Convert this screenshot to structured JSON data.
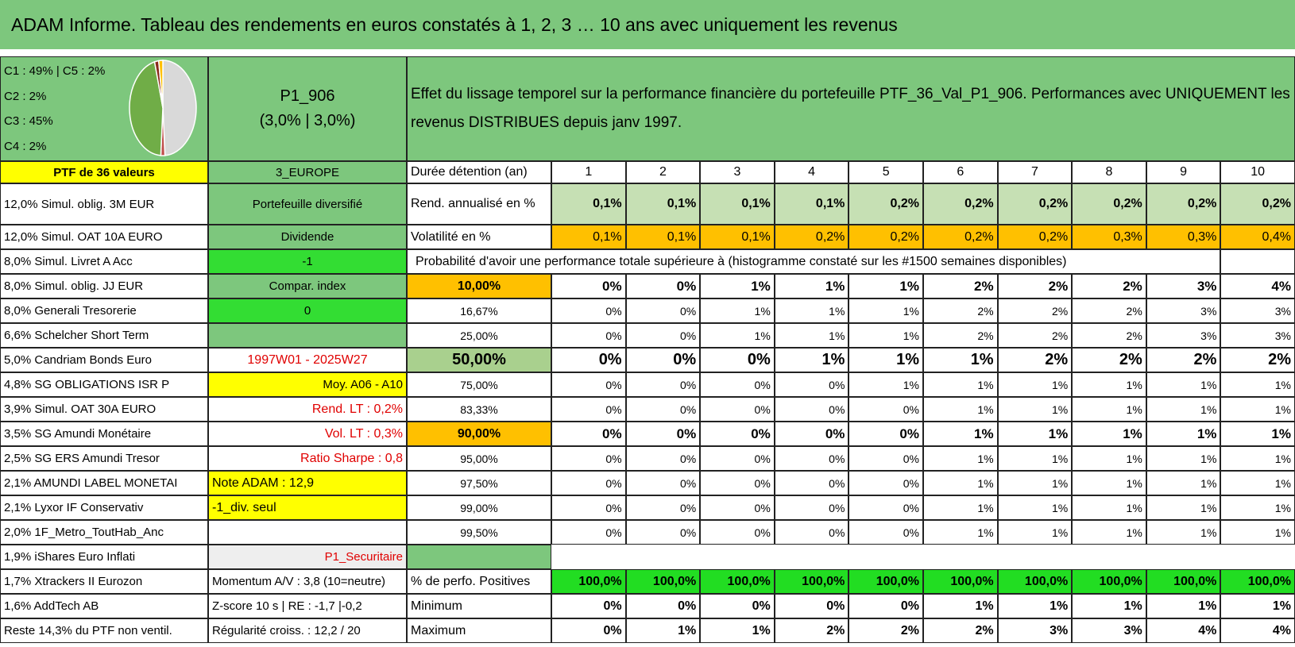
{
  "header": {
    "title": "ADAM Informe. Tableau des rendements en euros constatés à 1, 2, 3 … 10 ans avec uniquement les revenus"
  },
  "top": {
    "composition": [
      "C1 : 49% | C5 : 2%",
      "C2 : 2%",
      "C3 : 45%",
      "C4 : 2%"
    ],
    "pie": {
      "values": [
        49,
        2,
        45,
        2,
        2
      ],
      "colors": [
        "#d9d9d9",
        "#c0504d",
        "#70ad47",
        "#8b2a1a",
        "#ffc000"
      ]
    },
    "portfolio": [
      "P1_906",
      "(3,0% | 3,0%)"
    ],
    "description": "Effet du lissage temporel sur la performance financière du portefeuille PTF_36_Val_P1_906. Performances avec UNIQUEMENT les revenus DISTRIBUES depuis janv 1997."
  },
  "holdings": [
    "PTF de 36 valeurs",
    "12,0% Simul. oblig. 3M EUR",
    "12,0% Simul. OAT 10A EURO",
    "8,0% Simul. Livret A Acc",
    "8,0% Simul. oblig. JJ EUR",
    "8,0% Generali Tresorerie",
    "6,6% Schelcher Short Term",
    "5,0% Candriam Bonds Euro",
    "4,8% SG OBLIGATIONS ISR P",
    "3,9% Simul. OAT 30A EURO",
    "3,5% SG Amundi Monétaire",
    "2,5% SG ERS Amundi Tresor",
    "2,1% AMUNDI LABEL MONETAI",
    "2,1% Lyxor IF Conservativ",
    "2,0% 1F_Metro_ToutHab_Anc",
    "1,9% iShares Euro Inflati",
    "1,7% Xtrackers II Eurozon",
    "1,6% AddTech AB",
    "Reste 14,3% du PTF non ventil."
  ],
  "labels": [
    "3_EUROPE",
    "Portefeuille diversifié",
    "Dividende",
    "-1",
    "Compar. index",
    "0",
    null,
    "1997W01 - 2025W27",
    "Moy. A06 - A10",
    "Rend. LT : 0,2%",
    "Vol. LT : 0,3%",
    "Ratio Sharpe : 0,8",
    "Note ADAM : 12,9",
    "-1_div. seul",
    null,
    "P1_Securitaire",
    "Momentum A/V : 3,8 (10=neutre)",
    "Z-score 10 s | RE : -1,7 |-0,2",
    "Régularité croiss. : 12,2 / 20"
  ],
  "horizon": {
    "label": "Durée détention (an)",
    "years": [
      "1",
      "2",
      "3",
      "4",
      "5",
      "6",
      "7",
      "8",
      "9",
      "10"
    ]
  },
  "returns": {
    "label": "Rend. annualisé en %",
    "values": [
      "0,1%",
      "0,1%",
      "0,1%",
      "0,1%",
      "0,2%",
      "0,2%",
      "0,2%",
      "0,2%",
      "0,2%",
      "0,2%"
    ]
  },
  "volatility": {
    "label": "Volatilité en %",
    "values": [
      "0,1%",
      "0,1%",
      "0,1%",
      "0,2%",
      "0,2%",
      "0,2%",
      "0,2%",
      "0,3%",
      "0,3%",
      "0,4%"
    ]
  },
  "probability": {
    "title": "Probabilité d'avoir une performance totale supérieure à (histogramme constaté sur les #1500 semaines disponibles)",
    "rows": [
      {
        "threshold": "10,00%",
        "values": [
          "0%",
          "0%",
          "1%",
          "1%",
          "1%",
          "2%",
          "2%",
          "2%",
          "3%",
          "4%"
        ]
      },
      {
        "threshold": "16,67%",
        "values": [
          "0%",
          "0%",
          "1%",
          "1%",
          "1%",
          "2%",
          "2%",
          "2%",
          "3%",
          "3%"
        ]
      },
      {
        "threshold": "25,00%",
        "values": [
          "0%",
          "0%",
          "1%",
          "1%",
          "1%",
          "2%",
          "2%",
          "2%",
          "3%",
          "3%"
        ]
      },
      {
        "threshold": "50,00%",
        "values": [
          "0%",
          "0%",
          "0%",
          "1%",
          "1%",
          "1%",
          "2%",
          "2%",
          "2%",
          "2%"
        ]
      },
      {
        "threshold": "75,00%",
        "values": [
          "0%",
          "0%",
          "0%",
          "0%",
          "1%",
          "1%",
          "1%",
          "1%",
          "1%",
          "1%"
        ]
      },
      {
        "threshold": "83,33%",
        "values": [
          "0%",
          "0%",
          "0%",
          "0%",
          "0%",
          "1%",
          "1%",
          "1%",
          "1%",
          "1%"
        ]
      },
      {
        "threshold": "90,00%",
        "values": [
          "0%",
          "0%",
          "0%",
          "0%",
          "0%",
          "1%",
          "1%",
          "1%",
          "1%",
          "1%"
        ]
      },
      {
        "threshold": "95,00%",
        "values": [
          "0%",
          "0%",
          "0%",
          "0%",
          "0%",
          "1%",
          "1%",
          "1%",
          "1%",
          "1%"
        ]
      },
      {
        "threshold": "97,50%",
        "values": [
          "0%",
          "0%",
          "0%",
          "0%",
          "0%",
          "1%",
          "1%",
          "1%",
          "1%",
          "1%"
        ]
      },
      {
        "threshold": "99,00%",
        "values": [
          "0%",
          "0%",
          "0%",
          "0%",
          "0%",
          "1%",
          "1%",
          "1%",
          "1%",
          "1%"
        ]
      },
      {
        "threshold": "99,50%",
        "values": [
          "0%",
          "0%",
          "0%",
          "0%",
          "0%",
          "1%",
          "1%",
          "1%",
          "1%",
          "1%"
        ]
      }
    ]
  },
  "stats": [
    {
      "label": "% de perfo. Positives",
      "values": [
        "100,0%",
        "100,0%",
        "100,0%",
        "100,0%",
        "100,0%",
        "100,0%",
        "100,0%",
        "100,0%",
        "100,0%",
        "100,0%"
      ]
    },
    {
      "label": "Minimum",
      "values": [
        "0%",
        "0%",
        "0%",
        "0%",
        "0%",
        "1%",
        "1%",
        "1%",
        "1%",
        "1%"
      ]
    },
    {
      "label": "Maximum",
      "values": [
        "0%",
        "1%",
        "1%",
        "2%",
        "2%",
        "2%",
        "3%",
        "3%",
        "4%",
        "4%"
      ]
    }
  ]
}
